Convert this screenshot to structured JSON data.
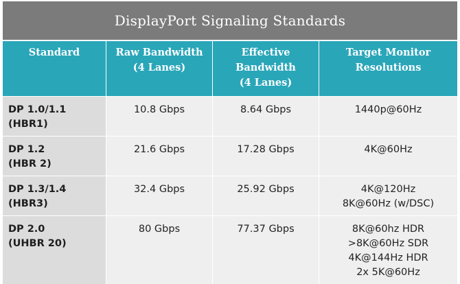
{
  "title": "DisplayPort Signaling Standards",
  "headers": {
    "standard": [
      "Standard"
    ],
    "raw": [
      "Raw Bandwidth",
      "(4 Lanes)"
    ],
    "effective": [
      "Effective",
      "Bandwidth",
      "(4 Lanes)"
    ],
    "target": [
      "Target Monitor",
      "Resolutions"
    ]
  },
  "rows": [
    {
      "standard": [
        "DP 1.0/1.1",
        "(HBR1)"
      ],
      "raw": "10.8 Gbps",
      "effective": "8.64 Gbps",
      "target": [
        "1440p@60Hz"
      ]
    },
    {
      "standard": [
        "DP 1.2",
        "(HBR 2)"
      ],
      "raw": "21.6 Gbps",
      "effective": "17.28 Gbps",
      "target": [
        "4K@60Hz"
      ]
    },
    {
      "standard": [
        "DP 1.3/1.4",
        "(HBR3)"
      ],
      "raw": "32.4 Gbps",
      "effective": "25.92 Gbps",
      "target": [
        "4K@120Hz",
        "8K@60Hz (w/DSC)"
      ]
    },
    {
      "standard": [
        "DP 2.0",
        "(UHBR 20)"
      ],
      "raw": "80 Gbps",
      "effective": "77.37 Gbps",
      "target": [
        "8K@60hz HDR",
        ">8K@60Hz SDR",
        "4K@144Hz HDR",
        "2x 5K@60Hz"
      ]
    }
  ],
  "colors": {
    "title_bg": "#7b7b7b",
    "header_bg": "#2aa6b9",
    "cell_bg": "#efefef",
    "standard_bg": "#dcdcdc"
  }
}
